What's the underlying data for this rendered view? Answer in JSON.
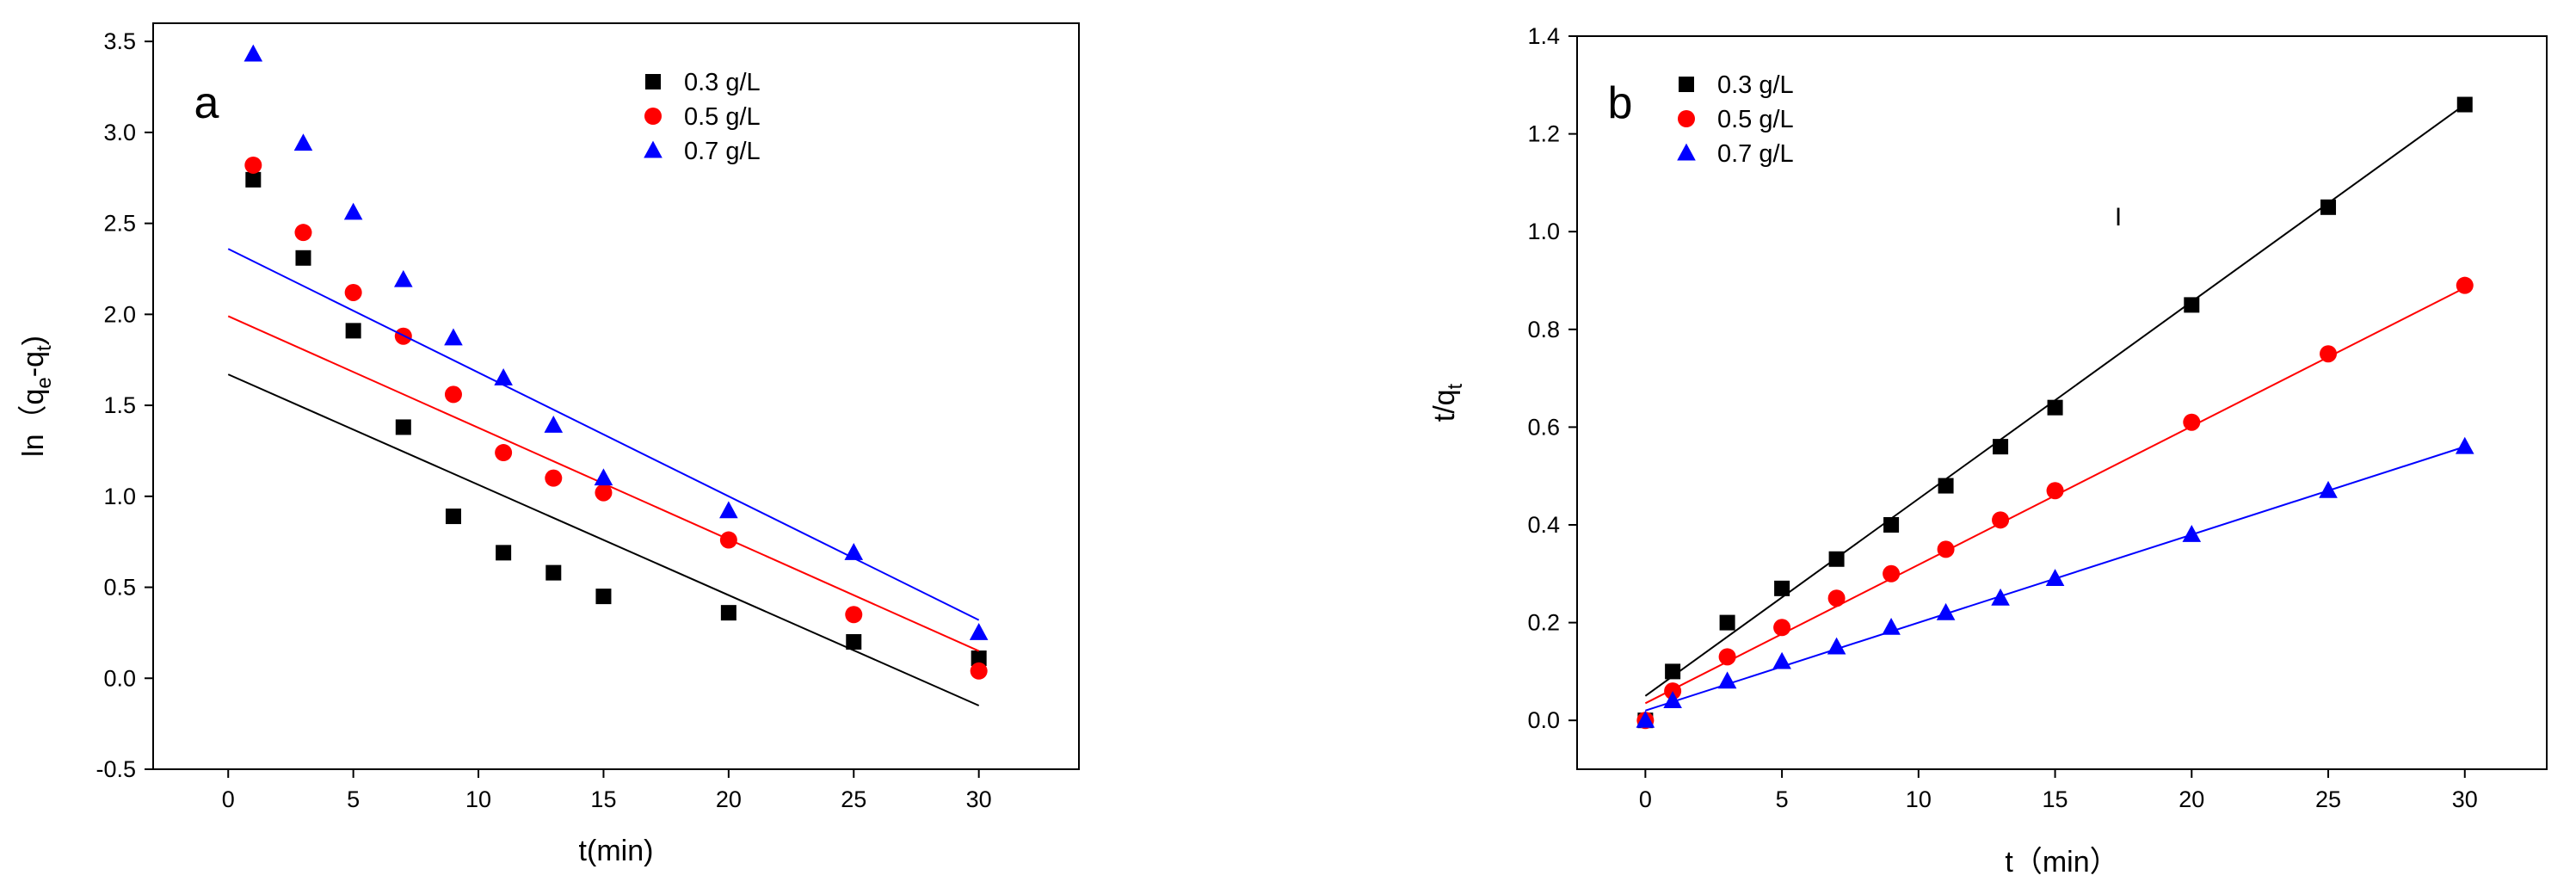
{
  "chart_data": [
    {
      "type": "scatter",
      "panel_label": "a",
      "title": "",
      "xlabel": "t(min)",
      "ylabel": {
        "prefix": "ln（q",
        "sub1": "e",
        "mid": "-q",
        "sub2": "t",
        "suffix": ")"
      },
      "xlim": [
        -3,
        34
      ],
      "ylim": [
        -0.5,
        3.6
      ],
      "xticks": [
        0,
        5,
        10,
        15,
        20,
        25,
        30
      ],
      "yticks": [
        -0.5,
        0.0,
        0.5,
        1.0,
        1.5,
        2.0,
        2.5,
        3.0,
        3.5
      ],
      "ytick_labels": [
        "-0.5",
        "0.0",
        "0.5",
        "1.0",
        "1.5",
        "2.0",
        "2.5",
        "3.0",
        "3.5"
      ],
      "legend_position": "top-right",
      "series": [
        {
          "name": "0.3 g/L",
          "marker": "square",
          "color": "#000000",
          "x": [
            1,
            3,
            5,
            7,
            9,
            11,
            13,
            15,
            20,
            25,
            30
          ],
          "y": [
            2.74,
            2.31,
            1.91,
            1.38,
            0.89,
            0.69,
            0.58,
            0.45,
            0.36,
            0.2,
            0.11
          ],
          "fit": {
            "x0": 0,
            "y0": 1.67,
            "x1": 30,
            "y1": -0.15
          }
        },
        {
          "name": "0.5 g/L",
          "marker": "circle",
          "color": "#ff0000",
          "x": [
            1,
            3,
            5,
            7,
            9,
            11,
            13,
            15,
            20,
            25,
            30
          ],
          "y": [
            2.82,
            2.45,
            2.12,
            1.88,
            1.56,
            1.24,
            1.1,
            1.02,
            0.76,
            0.35,
            0.04
          ],
          "fit": {
            "x0": 0,
            "y0": 1.99,
            "x1": 30,
            "y1": 0.15
          }
        },
        {
          "name": "0.7 g/L",
          "marker": "triangle",
          "color": "#0000ff",
          "x": [
            1,
            3,
            5,
            7,
            9,
            11,
            13,
            15,
            20,
            25,
            30
          ],
          "y": [
            3.43,
            2.94,
            2.56,
            2.19,
            1.87,
            1.65,
            1.39,
            1.1,
            0.92,
            0.69,
            0.25
          ],
          "fit": {
            "x0": 0,
            "y0": 2.36,
            "x1": 30,
            "y1": 0.32
          }
        }
      ]
    },
    {
      "type": "scatter",
      "panel_label": "b",
      "title": "",
      "xlabel": "t（min）",
      "ylabel": {
        "prefix": "t/q",
        "sub": "t"
      },
      "xlim": [
        -2.5,
        33
      ],
      "ylim": [
        -0.1,
        1.4
      ],
      "xticks": [
        0,
        5,
        10,
        15,
        20,
        25,
        30
      ],
      "yticks": [
        0.0,
        0.2,
        0.4,
        0.6,
        0.8,
        1.0,
        1.2,
        1.4
      ],
      "ytick_labels": [
        "0.0",
        "0.2",
        "0.4",
        "0.6",
        "0.8",
        "1.0",
        "1.2",
        "1.4"
      ],
      "legend_position": "top-left",
      "stray_text": "I",
      "series": [
        {
          "name": "0.3 g/L",
          "marker": "square",
          "color": "#000000",
          "x": [
            0,
            1,
            3,
            5,
            7,
            9,
            11,
            13,
            15,
            20,
            25,
            30
          ],
          "y": [
            0.0,
            0.1,
            0.2,
            0.27,
            0.33,
            0.4,
            0.48,
            0.56,
            0.64,
            0.85,
            1.05,
            1.26
          ],
          "fit": {
            "x0": 0,
            "y0": 0.05,
            "x1": 30,
            "y1": 1.26
          }
        },
        {
          "name": "0.5 g/L",
          "marker": "circle",
          "color": "#ff0000",
          "x": [
            0,
            1,
            3,
            5,
            7,
            9,
            11,
            13,
            15,
            20,
            25,
            30
          ],
          "y": [
            0.0,
            0.06,
            0.13,
            0.19,
            0.25,
            0.3,
            0.35,
            0.41,
            0.47,
            0.61,
            0.75,
            0.89
          ],
          "fit": {
            "x0": 0,
            "y0": 0.035,
            "x1": 30,
            "y1": 0.885
          }
        },
        {
          "name": "0.7 g/L",
          "marker": "triangle",
          "color": "#0000ff",
          "x": [
            0,
            1,
            3,
            5,
            7,
            9,
            11,
            13,
            15,
            20,
            25,
            30
          ],
          "y": [
            0.0,
            0.04,
            0.08,
            0.12,
            0.15,
            0.19,
            0.22,
            0.25,
            0.29,
            0.38,
            0.47,
            0.56
          ],
          "fit": {
            "x0": 0,
            "y0": 0.02,
            "x1": 30,
            "y1": 0.56
          }
        }
      ]
    }
  ]
}
